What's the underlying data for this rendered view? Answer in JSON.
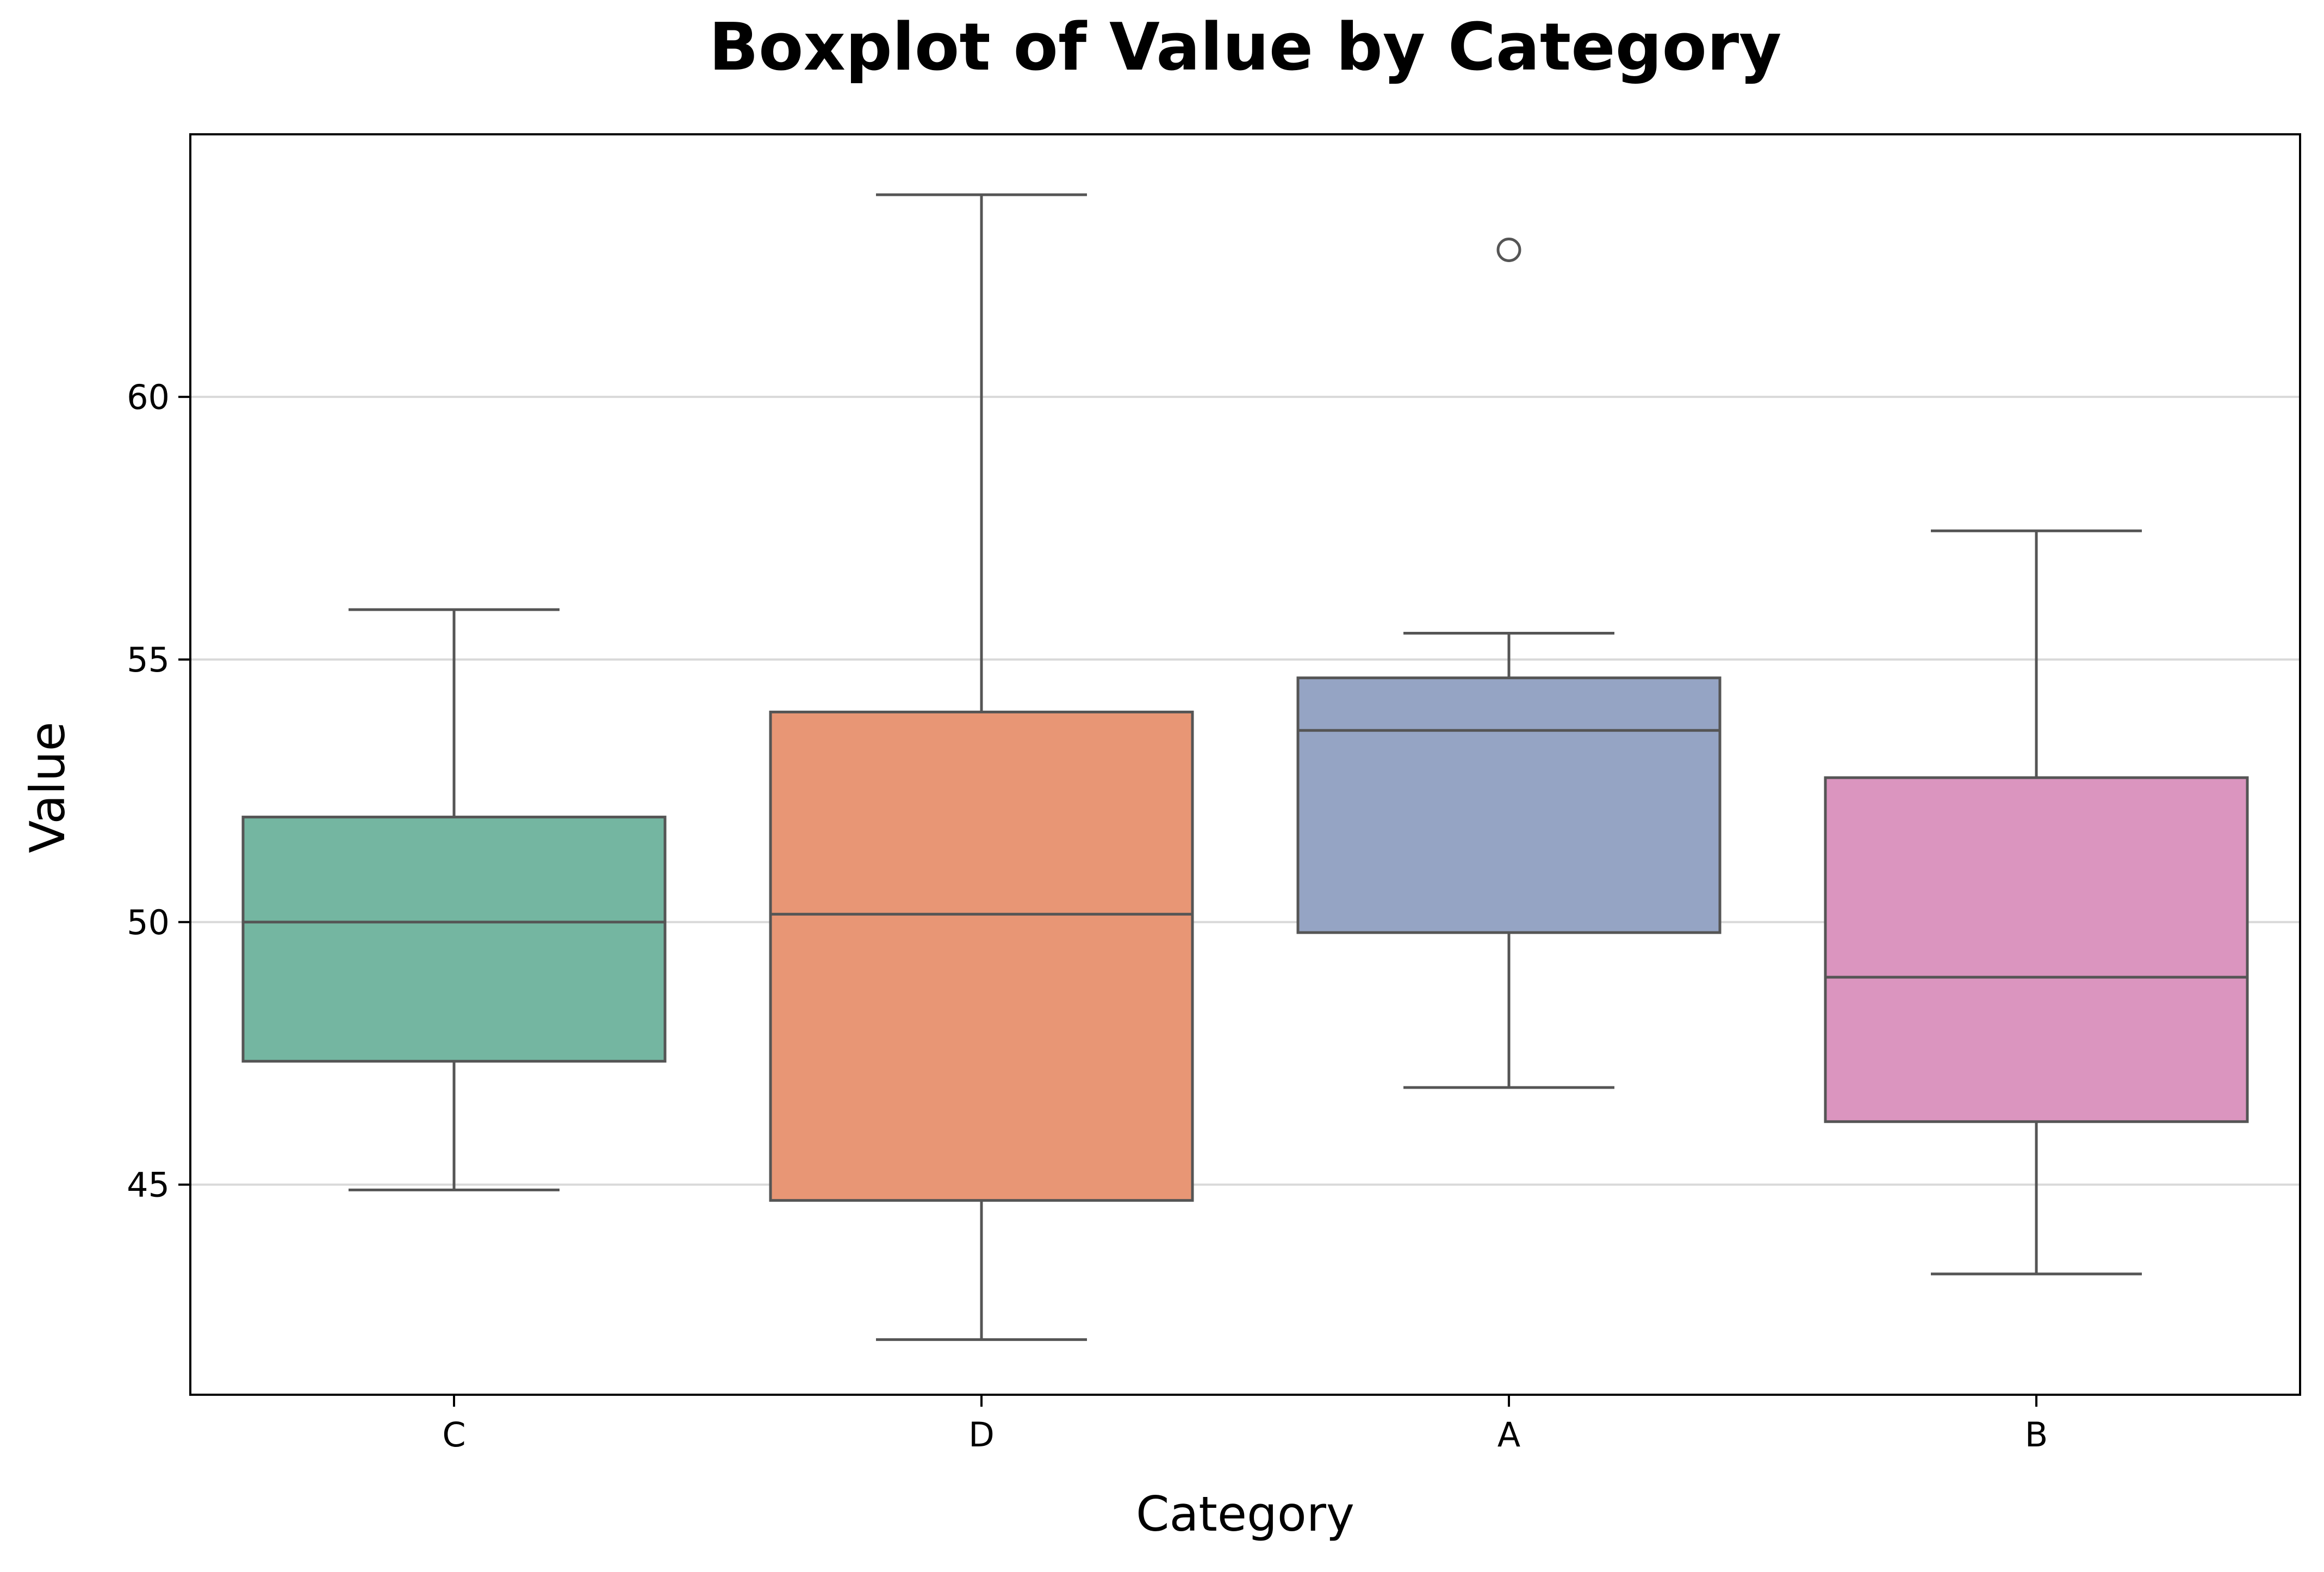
{
  "chart_data": {
    "type": "box",
    "title": "Boxplot of Value by Category",
    "xlabel": "Category",
    "ylabel": "Value",
    "categories": [
      "C",
      "D",
      "A",
      "B"
    ],
    "ylim": [
      41.0,
      65.0
    ],
    "yticks": [
      45,
      50,
      55,
      60
    ],
    "grid": "horizontal",
    "boxes": [
      {
        "category": "C",
        "whisker_low": 44.9,
        "q1": 47.35,
        "median": 50.0,
        "q3": 52.0,
        "whisker_high": 55.95,
        "outliers": [],
        "color": "#74b6a1"
      },
      {
        "category": "D",
        "whisker_low": 42.05,
        "q1": 44.7,
        "median": 50.15,
        "q3": 54.0,
        "whisker_high": 63.85,
        "outliers": [],
        "color": "#e89675"
      },
      {
        "category": "A",
        "whisker_low": 46.85,
        "q1": 49.8,
        "median": 53.65,
        "q3": 54.65,
        "whisker_high": 55.5,
        "outliers": [
          62.8
        ],
        "color": "#95a4c4"
      },
      {
        "category": "B",
        "whisker_low": 43.3,
        "q1": 46.2,
        "median": 48.95,
        "q3": 52.75,
        "whisker_high": 57.45,
        "outliers": [],
        "color": "#db95bf"
      }
    ],
    "line_color": "#555555",
    "grid_color": "#d9d9d9"
  }
}
